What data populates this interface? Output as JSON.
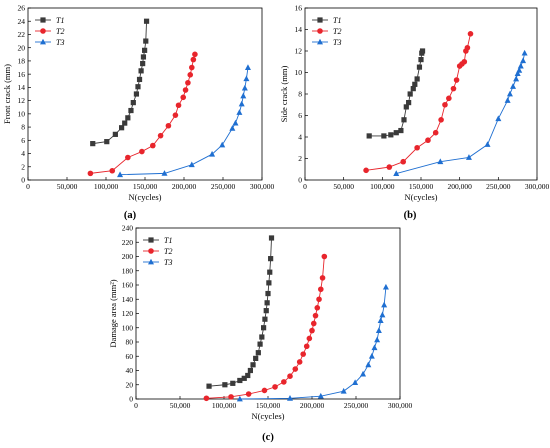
{
  "colors": {
    "T1": "#3a3a3a",
    "T2": "#e8252c",
    "T3": "#1f6fd1"
  },
  "legend": [
    "T1",
    "T2",
    "T3"
  ],
  "chart_data": [
    {
      "id": "a",
      "type": "line",
      "panel_label": "(a)",
      "xlabel": "N(cycles)",
      "ylabel": "Front crack (mm)",
      "xlim": [
        0,
        300000
      ],
      "ylim": [
        0,
        26
      ],
      "xticks": [
        0,
        50000,
        100000,
        150000,
        200000,
        250000,
        300000
      ],
      "yticks": [
        0,
        2,
        4,
        6,
        8,
        10,
        12,
        14,
        16,
        18,
        20,
        22,
        24,
        26
      ],
      "xtick_labels": [
        "0",
        "50,000",
        "100,000",
        "150,000",
        "200,000",
        "250,000",
        "300,000"
      ],
      "ytick_labels": [
        "0",
        "2",
        "4",
        "6",
        "8",
        "10",
        "12",
        "14",
        "16",
        "18",
        "20",
        "22",
        "24",
        "26"
      ],
      "series": [
        {
          "name": "T1",
          "marker": "square",
          "points": [
            [
              83000,
              5.5
            ],
            [
              101000,
              5.8
            ],
            [
              112000,
              6.9
            ],
            [
              120000,
              7.9
            ],
            [
              124000,
              8.6
            ],
            [
              128000,
              9.4
            ],
            [
              132000,
              10.5
            ],
            [
              135000,
              11.7
            ],
            [
              139000,
              13.0
            ],
            [
              141000,
              14.1
            ],
            [
              143000,
              15.2
            ],
            [
              145000,
              16.5
            ],
            [
              147000,
              17.6
            ],
            [
              148000,
              18.6
            ],
            [
              149500,
              19.6
            ],
            [
              151000,
              21.0
            ],
            [
              152000,
              24.0
            ]
          ]
        },
        {
          "name": "T2",
          "marker": "circle",
          "points": [
            [
              80000,
              1.0
            ],
            [
              108000,
              1.4
            ],
            [
              128000,
              3.4
            ],
            [
              146000,
              4.3
            ],
            [
              160000,
              5.2
            ],
            [
              170000,
              6.7
            ],
            [
              180000,
              8.2
            ],
            [
              189000,
              9.8
            ],
            [
              193000,
              11.3
            ],
            [
              199000,
              12.5
            ],
            [
              202000,
              13.6
            ],
            [
              205000,
              14.7
            ],
            [
              208000,
              15.9
            ],
            [
              210000,
              17.0
            ],
            [
              212000,
              18.2
            ],
            [
              214000,
              19.0
            ]
          ]
        },
        {
          "name": "T3",
          "marker": "triangle",
          "points": [
            [
              118000,
              0.8
            ],
            [
              175000,
              1.0
            ],
            [
              210000,
              2.3
            ],
            [
              236000,
              3.9
            ],
            [
              249000,
              5.3
            ],
            [
              262000,
              7.8
            ],
            [
              266000,
              8.6
            ],
            [
              271000,
              10.2
            ],
            [
              274000,
              11.5
            ],
            [
              276000,
              12.7
            ],
            [
              278000,
              13.9
            ],
            [
              280000,
              15.3
            ],
            [
              282000,
              17.0
            ]
          ]
        }
      ]
    },
    {
      "id": "b",
      "type": "line",
      "panel_label": "(b)",
      "xlabel": "N(cycles)",
      "ylabel": "Side crack (mm)",
      "xlim": [
        0,
        300000
      ],
      "ylim": [
        0,
        16
      ],
      "xticks": [
        0,
        50000,
        100000,
        150000,
        200000,
        250000,
        300000
      ],
      "yticks": [
        0,
        2,
        4,
        6,
        8,
        10,
        12,
        14,
        16
      ],
      "xtick_labels": [
        "0",
        "50,000",
        "100,000",
        "150,000",
        "200,000",
        "250,000",
        "300,000"
      ],
      "ytick_labels": [
        "0",
        "2",
        "4",
        "6",
        "8",
        "10",
        "12",
        "14",
        "16"
      ],
      "series": [
        {
          "name": "T1",
          "marker": "square",
          "points": [
            [
              83000,
              4.1
            ],
            [
              102000,
              4.1
            ],
            [
              111000,
              4.2
            ],
            [
              118000,
              4.4
            ],
            [
              124000,
              4.6
            ],
            [
              128000,
              5.6
            ],
            [
              131000,
              6.8
            ],
            [
              134000,
              7.2
            ],
            [
              136000,
              8.0
            ],
            [
              140000,
              8.5
            ],
            [
              142000,
              8.9
            ],
            [
              145000,
              9.4
            ],
            [
              148000,
              10.5
            ],
            [
              150000,
              11.2
            ],
            [
              151000,
              11.8
            ],
            [
              152000,
              12.0
            ]
          ]
        },
        {
          "name": "T2",
          "marker": "circle",
          "points": [
            [
              79000,
              0.9
            ],
            [
              109000,
              1.2
            ],
            [
              127000,
              1.7
            ],
            [
              145000,
              3.0
            ],
            [
              159000,
              3.7
            ],
            [
              169000,
              4.4
            ],
            [
              176000,
              5.6
            ],
            [
              181000,
              7.0
            ],
            [
              186000,
              7.6
            ],
            [
              192000,
              8.5
            ],
            [
              196000,
              9.3
            ],
            [
              200000,
              10.6
            ],
            [
              203000,
              10.8
            ],
            [
              206000,
              11.0
            ],
            [
              208000,
              12.0
            ],
            [
              210000,
              12.3
            ],
            [
              214000,
              13.6
            ]
          ]
        },
        {
          "name": "T3",
          "marker": "triangle",
          "points": [
            [
              118000,
              0.6
            ],
            [
              175000,
              1.7
            ],
            [
              212000,
              2.1
            ],
            [
              236000,
              3.3
            ],
            [
              250000,
              5.7
            ],
            [
              262000,
              7.4
            ],
            [
              265000,
              8.0
            ],
            [
              269000,
              8.7
            ],
            [
              273000,
              9.4
            ],
            [
              275000,
              9.9
            ],
            [
              277000,
              10.2
            ],
            [
              279000,
              10.6
            ],
            [
              282000,
              11.1
            ],
            [
              284000,
              11.8
            ]
          ]
        }
      ]
    },
    {
      "id": "c",
      "type": "line",
      "panel_label": "(c)",
      "xlabel": "N(cycles)",
      "ylabel": "Damage area (mm²)",
      "xlim": [
        0,
        300000
      ],
      "ylim": [
        0,
        240
      ],
      "xticks": [
        0,
        50000,
        100000,
        150000,
        200000,
        250000,
        300000
      ],
      "yticks": [
        0,
        20,
        40,
        60,
        80,
        100,
        120,
        140,
        160,
        180,
        200,
        220,
        240
      ],
      "xtick_labels": [
        "0",
        "50,000",
        "100,000",
        "150,000",
        "200,000",
        "250,000",
        "300,000"
      ],
      "ytick_labels": [
        "0",
        "20",
        "40",
        "60",
        "80",
        "100",
        "120",
        "140",
        "160",
        "180",
        "200",
        "220",
        "240"
      ],
      "series": [
        {
          "name": "T1",
          "marker": "square",
          "points": [
            [
              83000,
              18
            ],
            [
              101000,
              20
            ],
            [
              110000,
              22
            ],
            [
              118000,
              26
            ],
            [
              123000,
              29
            ],
            [
              127000,
              33
            ],
            [
              130000,
              40
            ],
            [
              133000,
              48
            ],
            [
              136000,
              57
            ],
            [
              139000,
              65
            ],
            [
              141000,
              77
            ],
            [
              143000,
              87
            ],
            [
              145000,
              100
            ],
            [
              146500,
              112
            ],
            [
              148000,
              124
            ],
            [
              149000,
              135
            ],
            [
              150000,
              148
            ],
            [
              151000,
              163
            ],
            [
              152000,
              178
            ],
            [
              153000,
              197
            ],
            [
              154000,
              226
            ]
          ]
        },
        {
          "name": "T2",
          "marker": "circle",
          "points": [
            [
              80000,
              1
            ],
            [
              108000,
              3
            ],
            [
              128000,
              7
            ],
            [
              146000,
              12
            ],
            [
              158000,
              17
            ],
            [
              168000,
              24
            ],
            [
              175000,
              32
            ],
            [
              181000,
              42
            ],
            [
              186000,
              52
            ],
            [
              190000,
              63
            ],
            [
              194000,
              74
            ],
            [
              197000,
              85
            ],
            [
              200000,
              96
            ],
            [
              202000,
              106
            ],
            [
              204000,
              117
            ],
            [
              206000,
              128
            ],
            [
              208000,
              140
            ],
            [
              210000,
              154
            ],
            [
              212000,
              170
            ],
            [
              214000,
              200
            ]
          ]
        },
        {
          "name": "T3",
          "marker": "triangle",
          "points": [
            [
              118000,
              0
            ],
            [
              175000,
              1
            ],
            [
              210000,
              4
            ],
            [
              236000,
              11
            ],
            [
              249000,
              23
            ],
            [
              258000,
              35
            ],
            [
              264000,
              48
            ],
            [
              268000,
              60
            ],
            [
              271000,
              72
            ],
            [
              274000,
              83
            ],
            [
              276000,
              96
            ],
            [
              278000,
              110
            ],
            [
              280000,
              118
            ],
            [
              282000,
              132
            ],
            [
              284000,
              157
            ]
          ]
        }
      ]
    }
  ]
}
